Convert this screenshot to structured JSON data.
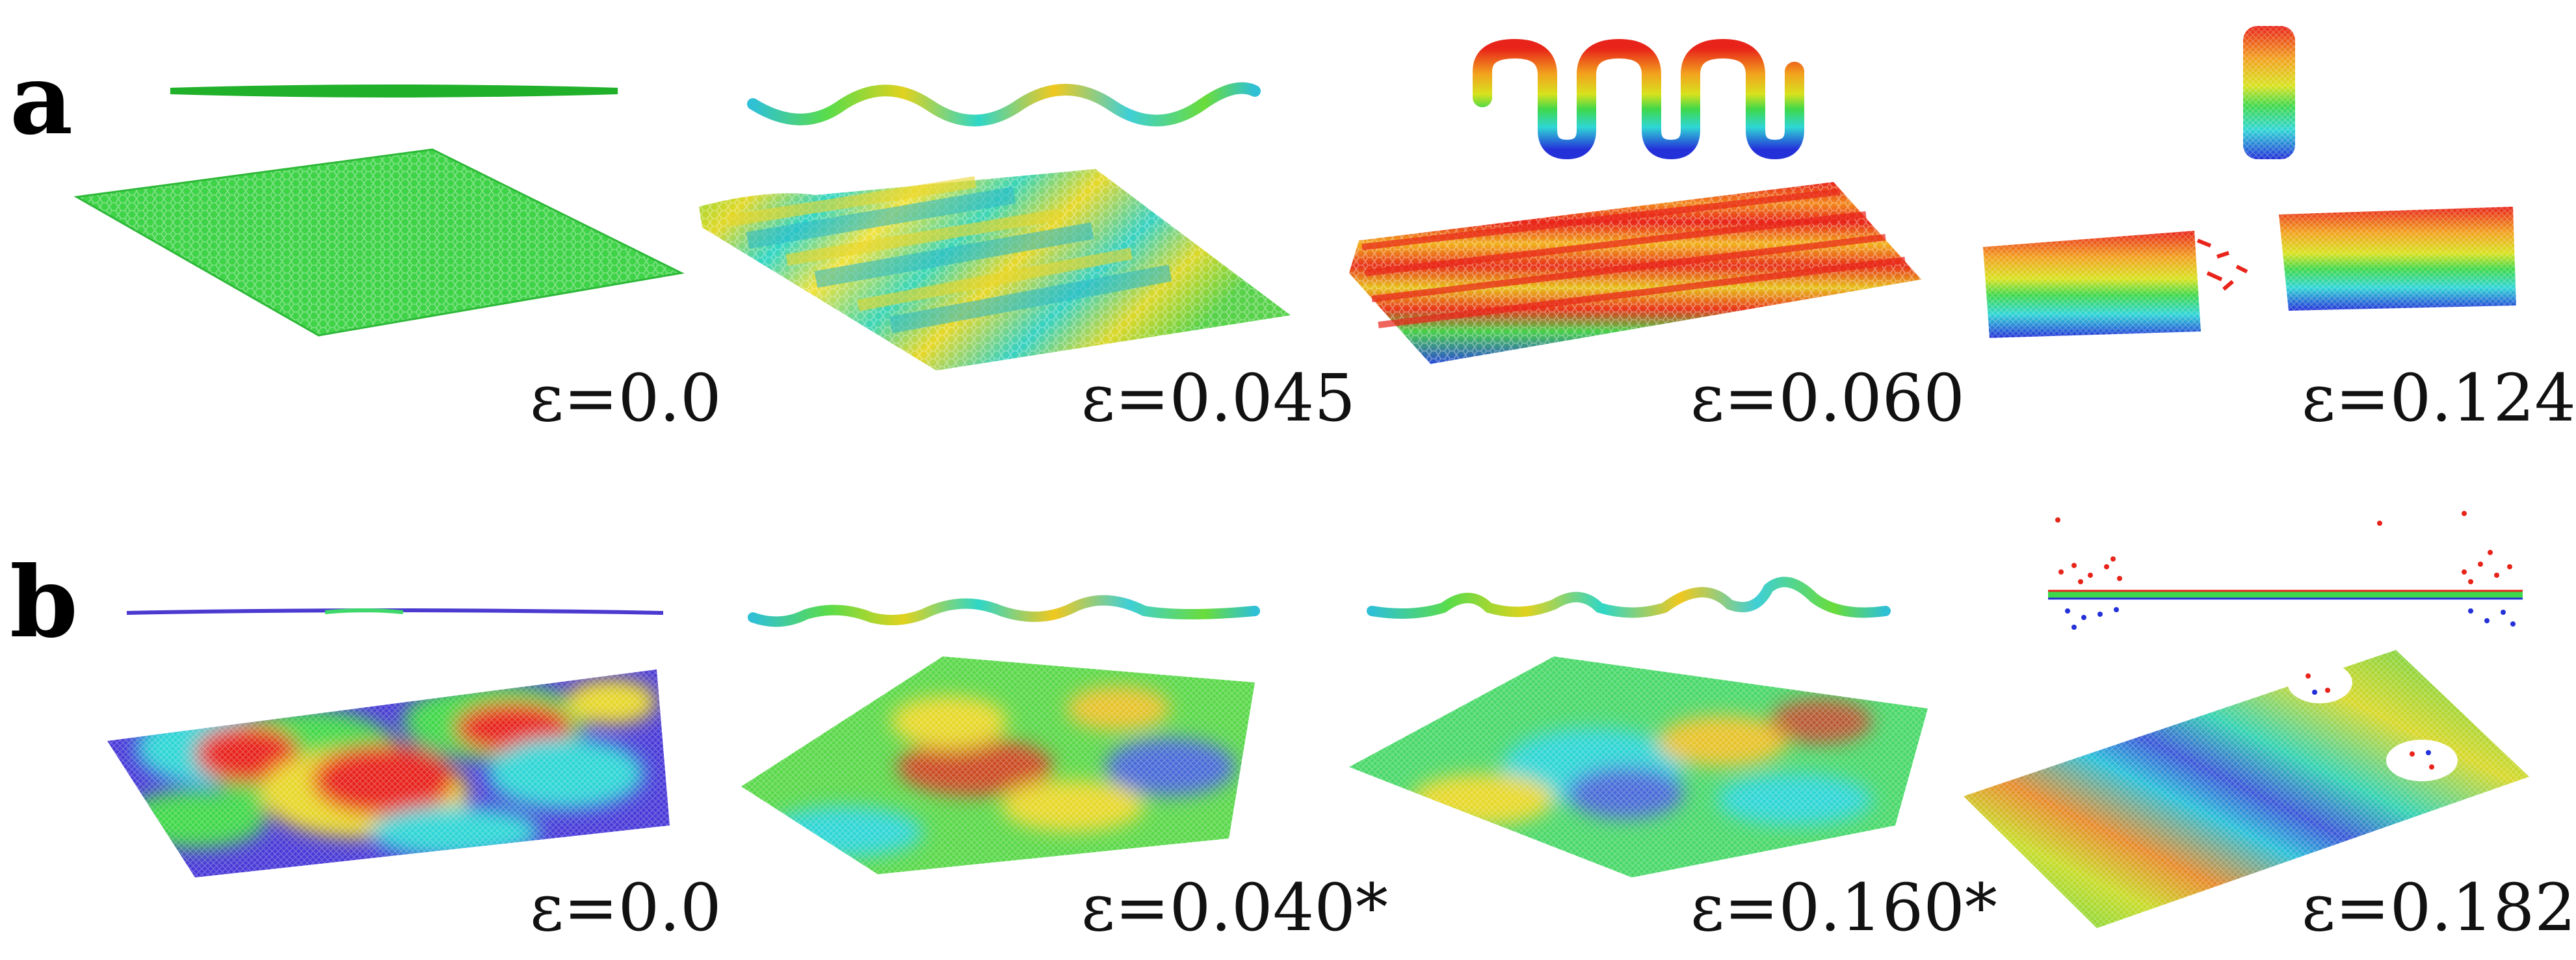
{
  "rows": [
    {
      "label": "a",
      "panels": [
        {
          "strain": "ε=0.0"
        },
        {
          "strain": "ε=0.045"
        },
        {
          "strain": "ε=0.060"
        },
        {
          "strain": "ε=0.124"
        }
      ]
    },
    {
      "label": "b",
      "panels": [
        {
          "strain": "ε=0.0"
        },
        {
          "strain": "ε=0.040*"
        },
        {
          "strain": "ε=0.160*"
        },
        {
          "strain": "ε=0.182"
        }
      ]
    }
  ],
  "colors": {
    "green": "#2fcf3a",
    "red": "#e8241a",
    "orange": "#f29a1e",
    "yellow": "#e3e31e",
    "cyan": "#2fd6d6",
    "blue": "#2430d8",
    "purple": "#5a2ad0"
  }
}
